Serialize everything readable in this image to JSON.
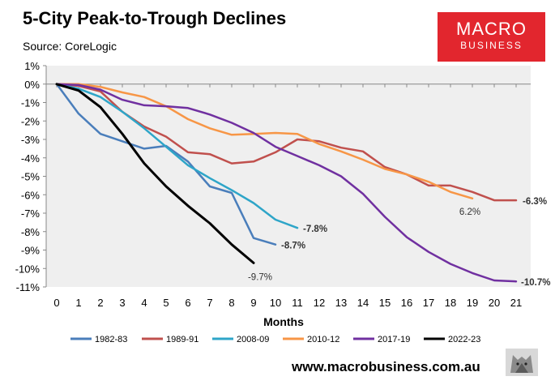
{
  "header": {
    "title": "5-City Peak-to-Trough Declines",
    "source": "Source: CoreLogic"
  },
  "logo": {
    "line1": "MACRO",
    "line2": "BUSINESS",
    "color": "#e2262e"
  },
  "footer": {
    "url": "www.macrobusiness.com.au"
  },
  "chart_data": {
    "type": "line",
    "title": "5-City Peak-to-Trough Declines",
    "xlabel": "Months",
    "ylabel": "",
    "xlim": [
      0,
      21
    ],
    "ylim": [
      -11,
      1
    ],
    "x_ticks": [
      "0",
      "1",
      "2",
      "3",
      "4",
      "5",
      "6",
      "7",
      "8",
      "9",
      "10",
      "11",
      "12",
      "13",
      "14",
      "15",
      "16",
      "17",
      "18",
      "19",
      "20",
      "21"
    ],
    "y_ticks": [
      "1%",
      "0%",
      "-1%",
      "-2%",
      "-3%",
      "-4%",
      "-5%",
      "-6%",
      "-7%",
      "-8%",
      "-9%",
      "-10%",
      "-11%"
    ],
    "plot_background": "#efefef",
    "grid": false,
    "legend_position": "bottom",
    "series": [
      {
        "name": "1982-83",
        "color": "#4a7ebb",
        "x": [
          0,
          1,
          2,
          3,
          4,
          5,
          6,
          7,
          8,
          9,
          10
        ],
        "values": [
          0,
          -1.6,
          -2.7,
          -3.1,
          -3.5,
          -3.35,
          -4.2,
          -5.55,
          -5.9,
          -8.35,
          -8.7
        ]
      },
      {
        "name": "1989-91",
        "color": "#c0504d",
        "x": [
          0,
          1,
          2,
          3,
          4,
          5,
          6,
          7,
          8,
          9,
          10,
          11,
          12,
          13,
          14,
          15,
          16,
          17,
          18,
          19,
          20,
          21
        ],
        "values": [
          0,
          -0.1,
          -0.4,
          -1.5,
          -2.3,
          -2.85,
          -3.7,
          -3.8,
          -4.3,
          -4.2,
          -3.7,
          -3.0,
          -3.1,
          -3.45,
          -3.65,
          -4.5,
          -4.9,
          -5.5,
          -5.5,
          -5.85,
          -6.3,
          -6.3
        ]
      },
      {
        "name": "2008-09",
        "color": "#2ea5c8",
        "x": [
          0,
          1,
          2,
          3,
          4,
          5,
          6,
          7,
          8,
          9,
          10,
          11
        ],
        "values": [
          0,
          -0.25,
          -0.7,
          -1.5,
          -2.4,
          -3.4,
          -4.4,
          -5.1,
          -5.75,
          -6.45,
          -7.35,
          -7.8
        ]
      },
      {
        "name": "2010-12",
        "color": "#f79646",
        "x": [
          0,
          1,
          2,
          3,
          4,
          5,
          6,
          7,
          8,
          9,
          10,
          11,
          12,
          13,
          14,
          15,
          16,
          17,
          18,
          19
        ],
        "values": [
          0,
          0,
          -0.15,
          -0.45,
          -0.7,
          -1.2,
          -1.9,
          -2.4,
          -2.75,
          -2.7,
          -2.65,
          -2.7,
          -3.25,
          -3.65,
          -4.1,
          -4.6,
          -4.9,
          -5.3,
          -5.85,
          -6.2
        ]
      },
      {
        "name": "2017-19",
        "color": "#7030a0",
        "x": [
          0,
          1,
          2,
          3,
          4,
          5,
          6,
          7,
          8,
          9,
          10,
          11,
          12,
          13,
          14,
          15,
          16,
          17,
          18,
          19,
          20,
          21
        ],
        "values": [
          0,
          -0.05,
          -0.3,
          -0.85,
          -1.15,
          -1.2,
          -1.3,
          -1.65,
          -2.1,
          -2.65,
          -3.4,
          -3.9,
          -4.4,
          -5.0,
          -5.95,
          -7.2,
          -8.3,
          -9.1,
          -9.75,
          -10.25,
          -10.65,
          -10.7
        ]
      },
      {
        "name": "2022-23",
        "color": "#000000",
        "x": [
          0,
          1,
          2,
          3,
          4,
          5,
          6,
          7,
          8,
          9
        ],
        "values": [
          0,
          -0.35,
          -1.25,
          -2.7,
          -4.3,
          -5.55,
          -6.6,
          -7.55,
          -8.7,
          -9.7
        ]
      }
    ],
    "annotations": [
      {
        "text": "-6.3%",
        "series": "1989-91",
        "bold": true
      },
      {
        "text": "6.2%",
        "series": "2010-12",
        "bold": false
      },
      {
        "text": "-7.8%",
        "series": "2008-09",
        "bold": true
      },
      {
        "text": "-8.7%",
        "series": "1982-83",
        "bold": true
      },
      {
        "text": "-9.7%",
        "series": "2022-23",
        "bold": false
      },
      {
        "text": "-10.7%",
        "series": "2017-19",
        "bold": true
      }
    ]
  }
}
